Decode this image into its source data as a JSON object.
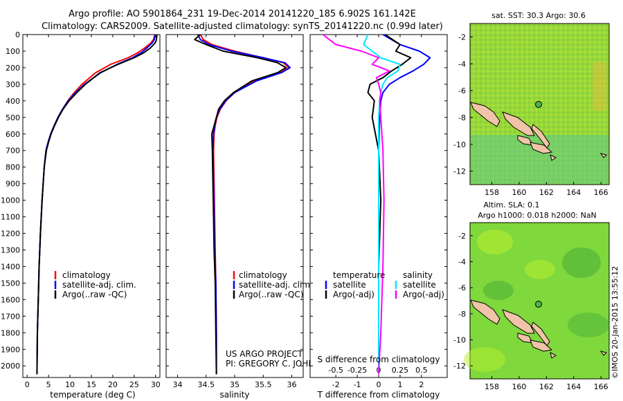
{
  "header": {
    "line1": "Argo profile: AO 5901864_231 19-Dec-2014 20141220_185 6.902S 161.142E",
    "line2": "Climatology: CARS2009. Satellite-adjusted climatology: synTS_20141220.nc (0.99d later)"
  },
  "colors": {
    "climatology": "#ff0000",
    "satellite": "#0000ff",
    "argo": "#000000",
    "sat_salinity": "#00e5ff",
    "argo_salinity": "#ff00ff"
  },
  "credits": {
    "project": "US ARGO PROJECT",
    "pi": "PI: GREGORY C. JOHNSON",
    "stamp": "©IMOS 20-Jan-2015 13:55:12"
  },
  "chart_data": [
    {
      "type": "line",
      "xlabel": "temperature (deg C)",
      "xlim": [
        -1,
        31
      ],
      "ylim": [
        2070,
        0
      ],
      "y_reversed": true,
      "xticks": [
        0,
        5,
        10,
        15,
        20,
        25,
        30
      ],
      "yticks": [
        0,
        100,
        200,
        300,
        400,
        500,
        600,
        700,
        800,
        900,
        1000,
        1100,
        1200,
        1300,
        1400,
        1500,
        1600,
        1700,
        1800,
        1900,
        2000
      ],
      "legend": [
        "climatology",
        "satellite-adj. clim.",
        "Argo(..raw -QC)"
      ],
      "legend_placement": "lower-middle",
      "series": [
        {
          "name": "climatology",
          "color": "#ff0000",
          "x": [
            29.8,
            29.5,
            28.9,
            27.5,
            25.8,
            23.6,
            19.5,
            16.0,
            12.8,
            11.0,
            9.5,
            8.3,
            7.2,
            6.3,
            5.5,
            4.9,
            4.4,
            4.0,
            3.5,
            3.1,
            2.8,
            2.6,
            2.4,
            2.3
          ],
          "y": [
            0,
            30,
            50,
            80,
            110,
            140,
            180,
            230,
            300,
            350,
            400,
            450,
            500,
            550,
            600,
            650,
            700,
            800,
            1000,
            1200,
            1400,
            1600,
            1800,
            2050
          ]
        },
        {
          "name": "satellite-adj. clim.",
          "color": "#0000ff",
          "x": [
            29.9,
            29.7,
            29.2,
            28.0,
            26.6,
            24.6,
            21.0,
            17.2,
            13.4,
            11.3,
            9.6,
            8.3,
            7.2,
            6.3,
            5.5,
            4.9,
            4.4,
            4.0,
            3.5,
            3.1,
            2.8,
            2.6,
            2.4,
            2.3
          ],
          "y": [
            0,
            30,
            50,
            80,
            110,
            140,
            180,
            230,
            300,
            350,
            400,
            450,
            500,
            550,
            600,
            650,
            700,
            800,
            1000,
            1200,
            1400,
            1600,
            1800,
            2050
          ]
        },
        {
          "name": "Argo(..raw -QC)",
          "color": "#000000",
          "x": [
            30.3,
            30.2,
            29.9,
            28.8,
            27.2,
            25.0,
            21.2,
            17.0,
            13.6,
            11.6,
            9.8,
            8.4,
            7.3,
            6.4,
            5.6,
            5.0,
            4.5,
            4.0,
            3.5,
            3.1,
            2.8,
            2.6,
            2.4,
            2.3
          ],
          "y": [
            0,
            30,
            50,
            80,
            110,
            140,
            180,
            230,
            300,
            350,
            400,
            450,
            500,
            550,
            600,
            650,
            700,
            800,
            1000,
            1200,
            1400,
            1600,
            1800,
            2050
          ]
        }
      ]
    },
    {
      "type": "line",
      "xlabel": "salinity",
      "xlim": [
        33.8,
        36.2
      ],
      "ylim": [
        2070,
        0
      ],
      "y_reversed": true,
      "xticks": [
        34,
        34.5,
        35,
        35.5,
        36
      ],
      "legend": [
        "climatology",
        "satellite-adj. clim.",
        "Argo(..raw -QC)"
      ],
      "legend_placement": "lower-middle",
      "series": [
        {
          "name": "climatology",
          "color": "#ff0000",
          "x": [
            34.4,
            34.45,
            34.6,
            35.0,
            35.5,
            35.85,
            35.95,
            35.8,
            35.35,
            35.0,
            34.85,
            34.75,
            34.69,
            34.66,
            34.64,
            34.63,
            34.64,
            34.65,
            34.66,
            34.67,
            34.68,
            34.68
          ],
          "y": [
            0,
            30,
            60,
            100,
            140,
            170,
            200,
            230,
            280,
            350,
            400,
            450,
            500,
            550,
            600,
            700,
            900,
            1100,
            1300,
            1500,
            1800,
            2050
          ]
        },
        {
          "name": "satellite-adj. clim.",
          "color": "#0000ff",
          "x": [
            34.35,
            34.4,
            34.55,
            34.95,
            35.5,
            35.88,
            35.97,
            35.82,
            35.38,
            35.0,
            34.84,
            34.74,
            34.68,
            34.65,
            34.63,
            34.62,
            34.63,
            34.64,
            34.65,
            34.67,
            34.68,
            34.68
          ],
          "y": [
            0,
            30,
            60,
            100,
            140,
            170,
            200,
            230,
            280,
            350,
            400,
            450,
            500,
            550,
            600,
            700,
            900,
            1100,
            1300,
            1500,
            1800,
            2050
          ]
        },
        {
          "name": "Argo(..raw -QC)",
          "color": "#000000",
          "x": [
            34.4,
            34.3,
            34.5,
            34.8,
            35.4,
            35.75,
            35.9,
            35.75,
            35.3,
            34.98,
            34.82,
            34.72,
            34.68,
            34.64,
            34.6,
            34.61,
            34.62,
            34.63,
            34.64,
            34.66,
            34.67,
            34.68
          ],
          "y": [
            0,
            30,
            60,
            100,
            140,
            170,
            200,
            230,
            280,
            350,
            400,
            450,
            500,
            550,
            600,
            700,
            900,
            1100,
            1300,
            1500,
            1800,
            2050
          ]
        }
      ]
    },
    {
      "type": "line",
      "xlabel": "T difference from climatology",
      "xlabel2": "S difference from climatology",
      "xlim": [
        -3.2,
        3.2
      ],
      "ylim": [
        2070,
        0
      ],
      "y_reversed": true,
      "xticks_T": [
        -2,
        -1,
        0,
        1,
        2
      ],
      "xticks_S": [
        "-0.5",
        "-0.25",
        "0",
        "0.25",
        "0.5"
      ],
      "legend_temperature": [
        "temperature",
        "satellite",
        "Argo(-adj)"
      ],
      "legend_salinity": [
        "salinity",
        "satellite",
        "Argo(-adj)"
      ],
      "legend_placement": "lower-middle",
      "series": [
        {
          "name": "satellite",
          "color": "#0000ff",
          "x": [
            0.2,
            1.0,
            1.9,
            2.4,
            2.1,
            1.6,
            1.0,
            0.5,
            0.2,
            0.1,
            0.05,
            0.0,
            0.0,
            0.0,
            0.0,
            0.0
          ],
          "y": [
            0,
            60,
            100,
            140,
            180,
            220,
            260,
            300,
            350,
            400,
            500,
            700,
            1000,
            1400,
            1800,
            2050
          ]
        },
        {
          "name": "Argo(-adj)",
          "color": "#000000",
          "x": [
            0.3,
            1.0,
            0.8,
            1.5,
            1.1,
            0.6,
            0.2,
            -0.4,
            -0.5,
            -0.2,
            -0.3,
            0.0,
            0.1,
            0.0,
            0.0,
            0.0
          ],
          "y": [
            0,
            60,
            100,
            140,
            180,
            220,
            260,
            300,
            350,
            400,
            500,
            700,
            1000,
            1400,
            1800,
            2050
          ]
        },
        {
          "name": "satellite (salinity)",
          "color": "#00e5ff",
          "x": [
            -0.5,
            -0.7,
            -0.3,
            0.1,
            1.0,
            0.9,
            0.4,
            0.2,
            0.1,
            0.05,
            0.0,
            0.0,
            0.0,
            0.0,
            0.0,
            0.0
          ],
          "y": [
            0,
            60,
            100,
            140,
            180,
            220,
            260,
            300,
            350,
            400,
            500,
            700,
            1000,
            1400,
            1800,
            2050
          ]
        },
        {
          "name": "Argo(-adj) (salinity)",
          "color": "#ff00ff",
          "x": [
            -2.6,
            -2.0,
            -0.8,
            0.0,
            -0.3,
            0.5,
            -0.1,
            0.0,
            0.1,
            0.05,
            0.1,
            0.2,
            0.25,
            0.2,
            0.1,
            0.0
          ],
          "y": [
            0,
            60,
            100,
            140,
            180,
            220,
            260,
            300,
            350,
            400,
            500,
            700,
            1000,
            1400,
            1800,
            2050
          ]
        }
      ]
    },
    {
      "type": "heatmap",
      "title": "sat. SST: 30.3 Argo: 30.6",
      "xticks": [
        158,
        160,
        162,
        164,
        166
      ],
      "yticks": [
        -2,
        -4,
        -6,
        -8,
        -10,
        -12
      ],
      "xlim": [
        156.4,
        166.6
      ],
      "ylim": [
        -13,
        -1
      ],
      "argo_position": {
        "lon": 161.142,
        "lat": -6.902
      }
    },
    {
      "type": "heatmap",
      "title": "Altim. SLA: 0.1",
      "subtitle": "Argo h1000: 0.018 h2000: NaN",
      "xticks": [
        158,
        160,
        162,
        164,
        166
      ],
      "yticks": [
        -2,
        -4,
        -6,
        -8,
        -10,
        -12
      ],
      "xlim": [
        156.4,
        166.6
      ],
      "ylim": [
        -13,
        -1
      ],
      "argo_position": {
        "lon": 161.142,
        "lat": -6.902
      }
    }
  ]
}
